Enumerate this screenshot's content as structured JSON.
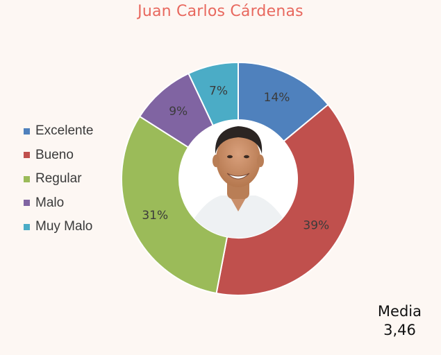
{
  "title": "Juan Carlos Cárdenas",
  "chart_data": {
    "type": "pie",
    "variant": "donut",
    "title": "Juan Carlos Cárdenas",
    "categories": [
      "Excelente",
      "Bueno",
      "Regular",
      "Malo",
      "Muy Malo"
    ],
    "values": [
      14,
      39,
      31,
      9,
      7
    ],
    "labels": [
      "14%",
      "39%",
      "31%",
      "9%",
      "7%"
    ],
    "colors": [
      "#4f81bd",
      "#c0504d",
      "#9bbb59",
      "#8064a2",
      "#4bacc6"
    ],
    "legend_position": "left",
    "center_image": "portrait-photo"
  },
  "legend": [
    {
      "label": "Excelente",
      "color": "#4f81bd"
    },
    {
      "label": "Bueno",
      "color": "#c0504d"
    },
    {
      "label": "Regular",
      "color": "#9bbb59"
    },
    {
      "label": "Malo",
      "color": "#8064a2"
    },
    {
      "label": "Muy Malo",
      "color": "#4bacc6"
    }
  ],
  "summary": {
    "label": "Media",
    "value": "3,46"
  }
}
